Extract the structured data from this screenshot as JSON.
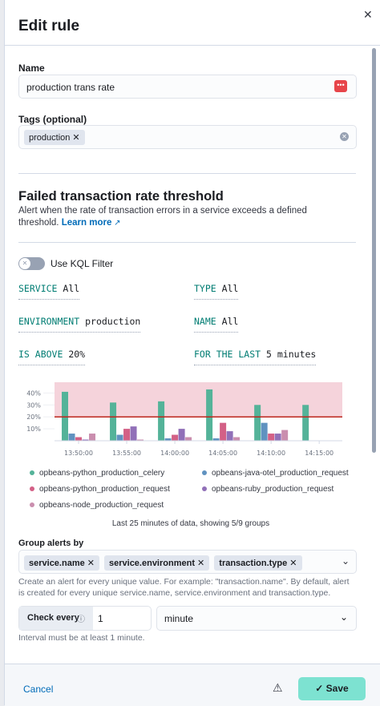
{
  "header": {
    "title": "Edit rule"
  },
  "form": {
    "name": {
      "label": "Name",
      "value": "production trans rate"
    },
    "tags": {
      "label": "Tags (optional)",
      "items": [
        "production"
      ]
    }
  },
  "rule": {
    "title": "Failed transaction rate threshold",
    "description": "Alert when the rate of transaction errors in a service exceeds a defined threshold.",
    "link": "Learn more"
  },
  "kql_filter": {
    "label": "Use KQL Filter",
    "enabled": false
  },
  "expressions": [
    {
      "key": "SERVICE",
      "value": "All"
    },
    {
      "key": "TYPE",
      "value": "All"
    },
    {
      "key": "ENVIRONMENT",
      "value": "production"
    },
    {
      "key": "NAME",
      "value": "All"
    },
    {
      "key": "IS ABOVE",
      "value": "20%"
    },
    {
      "key": "FOR THE LAST",
      "value": "5 minutes"
    }
  ],
  "chart_data": {
    "type": "bar",
    "x": [
      830,
      835,
      840,
      845,
      850,
      855
    ],
    "xlim": [
      827.5,
      857.4
    ],
    "xticks": [
      {
        "value": 830,
        "label": "13:50:00"
      },
      {
        "value": 835,
        "label": "13:55:00"
      },
      {
        "value": 840,
        "label": "14:00:00"
      },
      {
        "value": 845,
        "label": "14:05:00"
      },
      {
        "value": 850,
        "label": "14:10:00"
      },
      {
        "value": 855,
        "label": "14:15:00"
      }
    ],
    "ylim": [
      0,
      49
    ],
    "yticks": [
      {
        "value": 10,
        "label": "10%"
      },
      {
        "value": 20,
        "label": "20%"
      },
      {
        "value": 30,
        "label": "30%"
      },
      {
        "value": 40,
        "label": "40%"
      }
    ],
    "threshold": 20,
    "threshold_color": "#bd271e",
    "threshold_fill": "#f1c4cf",
    "series": [
      {
        "name": "opbeans-python_production_celery",
        "color": "#54b399",
        "values": [
          41,
          32,
          33,
          43,
          30,
          30
        ]
      },
      {
        "name": "opbeans-java-otel_production_request",
        "color": "#6092c0",
        "values": [
          6,
          5,
          2,
          2,
          15,
          null
        ]
      },
      {
        "name": "opbeans-python_production_request",
        "color": "#d36086",
        "values": [
          3,
          10,
          5,
          15,
          6,
          null
        ]
      },
      {
        "name": "opbeans-ruby_production_request",
        "color": "#9170b8",
        "values": [
          1,
          12,
          10,
          8,
          6,
          null
        ]
      },
      {
        "name": "opbeans-node_production_request",
        "color": "#ca8eae",
        "values": [
          6,
          1,
          3,
          3,
          9,
          null
        ]
      }
    ]
  },
  "chart_caption": "Last 25 minutes of data, showing 5/9 groups",
  "group_by": {
    "label": "Group alerts by",
    "items": [
      "service.name",
      "service.environment",
      "transaction.type"
    ],
    "help": "Create an alert for every unique value. For example: \"transaction.name\". By default, alert is created for every unique service.name, service.environment and transaction.type."
  },
  "check_every": {
    "label": "Check every",
    "value": "1",
    "unit": "minute",
    "help": "Interval must be at least 1 minute."
  },
  "footer": {
    "cancel": "Cancel",
    "save": "Save"
  }
}
